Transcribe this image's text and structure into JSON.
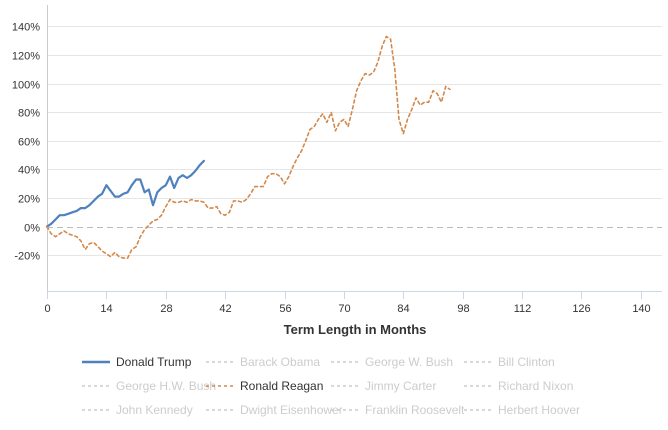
{
  "chart_data": {
    "type": "line",
    "title": "",
    "xlabel": "Term Length in Months",
    "ylabel": "",
    "xlim": [
      0,
      145
    ],
    "ylim": [
      -45,
      155
    ],
    "x_ticks": [
      0,
      14,
      28,
      42,
      56,
      70,
      84,
      98,
      112,
      126,
      140
    ],
    "x_tick_labels": [
      "0",
      "14",
      "28",
      "42",
      "56",
      "70",
      "84",
      "98",
      "112",
      "126",
      "140"
    ],
    "y_ticks": [
      -20,
      0,
      20,
      40,
      60,
      80,
      100,
      120,
      140
    ],
    "y_tick_labels": [
      "-20%",
      "0%",
      "20%",
      "40%",
      "60%",
      "80%",
      "100%",
      "120%",
      "140%"
    ],
    "grid": "horizontal",
    "zero_line_style": "dashed",
    "legend_placement": "bottom",
    "series": [
      {
        "name": "Donald Trump",
        "color": "#4f81bd",
        "style": "solid",
        "visible": true,
        "x": [
          0,
          1,
          2,
          3,
          4,
          5,
          6,
          7,
          8,
          9,
          10,
          11,
          12,
          13,
          14,
          15,
          16,
          17,
          18,
          19,
          20,
          21,
          22,
          23,
          24,
          25,
          26,
          27,
          28,
          29,
          30,
          31,
          32,
          33,
          34,
          35,
          36,
          37
        ],
        "y": [
          0,
          2,
          5,
          8,
          8,
          9,
          10,
          11,
          13,
          13,
          15,
          18,
          21,
          23,
          29,
          25,
          21,
          21,
          23,
          24,
          29,
          33,
          33,
          24,
          26,
          15,
          24,
          27,
          29,
          35,
          27,
          34,
          36,
          34,
          36,
          39,
          43,
          46
        ]
      },
      {
        "name": "Ronald Reagan",
        "color": "#d4884a",
        "style": "dashed",
        "visible": true,
        "x": [
          0,
          1,
          2,
          3,
          4,
          5,
          6,
          7,
          8,
          9,
          10,
          11,
          12,
          13,
          14,
          15,
          16,
          17,
          18,
          19,
          20,
          21,
          22,
          23,
          24,
          25,
          26,
          27,
          28,
          29,
          30,
          31,
          32,
          33,
          34,
          35,
          36,
          37,
          38,
          39,
          40,
          41,
          42,
          43,
          44,
          45,
          46,
          47,
          48,
          49,
          50,
          51,
          52,
          53,
          54,
          55,
          56,
          57,
          58,
          59,
          60,
          61,
          62,
          63,
          64,
          65,
          66,
          67,
          68,
          69,
          70,
          71,
          72,
          73,
          74,
          75,
          76,
          77,
          78,
          79,
          80,
          81,
          82,
          83,
          84,
          85,
          86,
          87,
          88,
          89,
          90,
          91,
          92,
          93,
          94,
          95
        ],
        "y": [
          0,
          -5,
          -7,
          -5,
          -3,
          -5,
          -6,
          -7,
          -10,
          -16,
          -12,
          -11,
          -14,
          -17,
          -19,
          -21,
          -18,
          -21,
          -22,
          -22,
          -16,
          -14,
          -7,
          -2,
          1,
          4,
          5,
          8,
          14,
          19,
          17,
          17,
          18,
          17,
          19,
          18,
          18,
          17,
          13,
          13,
          14,
          9,
          8,
          10,
          18,
          18,
          17,
          19,
          23,
          28,
          28,
          28,
          35,
          37,
          37,
          35,
          30,
          35,
          42,
          48,
          53,
          60,
          68,
          70,
          75,
          79,
          73,
          80,
          67,
          73,
          75,
          70,
          82,
          95,
          102,
          107,
          106,
          108,
          115,
          126,
          133,
          131,
          110,
          75,
          65,
          75,
          82,
          90,
          85,
          87,
          87,
          95,
          93,
          87,
          98,
          96
        ]
      },
      {
        "name": "Barack Obama",
        "color": "#cccccc",
        "style": "dashed",
        "visible": false
      },
      {
        "name": "George W. Bush",
        "color": "#cccccc",
        "style": "dashed",
        "visible": false
      },
      {
        "name": "Bill Clinton",
        "color": "#cccccc",
        "style": "dashed",
        "visible": false
      },
      {
        "name": "George H.W. Bush",
        "color": "#cccccc",
        "style": "dashed",
        "visible": false
      },
      {
        "name": "Jimmy Carter",
        "color": "#cccccc",
        "style": "dashed",
        "visible": false
      },
      {
        "name": "Richard Nixon",
        "color": "#cccccc",
        "style": "dashed",
        "visible": false
      },
      {
        "name": "John Kennedy",
        "color": "#cccccc",
        "style": "dashed",
        "visible": false
      },
      {
        "name": "Dwight Eisenhower",
        "color": "#cccccc",
        "style": "dashed",
        "visible": false
      },
      {
        "name": "Franklin Roosevelt",
        "color": "#cccccc",
        "style": "dashed",
        "visible": false
      },
      {
        "name": "Herbert Hoover",
        "color": "#cccccc",
        "style": "dashed",
        "visible": false
      }
    ],
    "legend": [
      {
        "label": "Donald Trump",
        "active": true,
        "line": "solid",
        "color": "#4f81bd"
      },
      {
        "label": "Barack Obama",
        "active": false,
        "line": "dashed",
        "color": "#cccccc"
      },
      {
        "label": "George W. Bush",
        "active": false,
        "line": "dashed",
        "color": "#cccccc"
      },
      {
        "label": "Bill Clinton",
        "active": false,
        "line": "dashed",
        "color": "#cccccc"
      },
      {
        "label": "George H.W. Bush",
        "active": false,
        "line": "dashed",
        "color": "#cccccc"
      },
      {
        "label": "Ronald Reagan",
        "active": true,
        "line": "dashed",
        "color": "#d4884a"
      },
      {
        "label": "Jimmy Carter",
        "active": false,
        "line": "dashed",
        "color": "#cccccc"
      },
      {
        "label": "Richard Nixon",
        "active": false,
        "line": "dashed",
        "color": "#cccccc"
      },
      {
        "label": "John Kennedy",
        "active": false,
        "line": "dashed",
        "color": "#cccccc"
      },
      {
        "label": "Dwight Eisenhower",
        "active": false,
        "line": "dashed",
        "color": "#cccccc"
      },
      {
        "label": "Franklin Roosevelt",
        "active": false,
        "line": "dashed",
        "color": "#cccccc"
      },
      {
        "label": "Herbert Hoover",
        "active": false,
        "line": "dashed",
        "color": "#cccccc"
      }
    ],
    "colors": {
      "grid": "#e6e6e6",
      "axis": "#ccd6eb",
      "zero_line": "#bbbbbb",
      "active_text": "#333333",
      "inactive_text": "#cccccc"
    }
  }
}
